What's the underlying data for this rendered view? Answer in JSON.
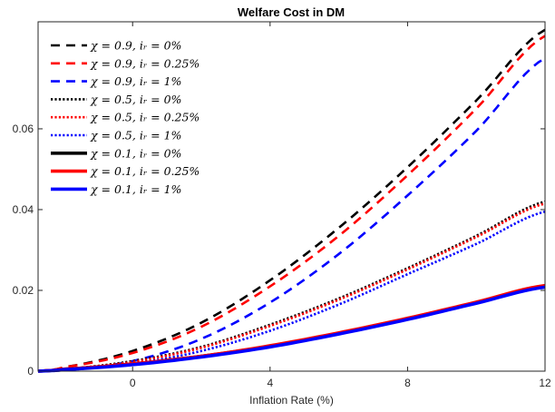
{
  "chart_data": {
    "type": "line",
    "title": "Welfare Cost in DM",
    "xlabel": "Inflation Rate (%)",
    "ylabel": "",
    "xlim": [
      -2.75,
      12
    ],
    "ylim": [
      0,
      0.0865
    ],
    "xticks": [
      0,
      4,
      8,
      12
    ],
    "xtick_labels": [
      "0",
      "4",
      "8",
      "12"
    ],
    "yticks": [
      0,
      0.02,
      0.04,
      0.06
    ],
    "ytick_labels": [
      "0",
      "0.02",
      "0.04",
      "0.06"
    ],
    "grid": false,
    "legend_position": "top-left",
    "series": [
      {
        "name": "χ = 0.9, i_r = 0%",
        "label": "χ = 0.9, iᵣ = 0%",
        "color": "#000000",
        "style": "dashed",
        "x": [
          -2.75,
          -2,
          0,
          2,
          4,
          6,
          8,
          10,
          12
        ],
        "y": [
          0.0,
          0.001,
          0.005,
          0.012,
          0.0225,
          0.0355,
          0.0505,
          0.067,
          0.0845
        ]
      },
      {
        "name": "χ = 0.9, i_r = 0.25%",
        "label": "χ = 0.9, iᵣ = 0.25%",
        "color": "#ff0000",
        "style": "dashed",
        "x": [
          -2.75,
          -2,
          0,
          2,
          4,
          6,
          8,
          10,
          12
        ],
        "y": [
          0.0,
          0.001,
          0.0045,
          0.011,
          0.021,
          0.0335,
          0.0485,
          0.065,
          0.083
        ]
      },
      {
        "name": "χ = 0.9, i_r = 1%",
        "label": "χ = 0.9, iᵣ = 1%",
        "color": "#0000ff",
        "style": "dashed",
        "x": [
          -2.75,
          -2,
          0,
          2,
          4,
          6,
          8,
          10,
          12
        ],
        "y": [
          0.0,
          0.0003,
          0.0025,
          0.008,
          0.017,
          0.029,
          0.0435,
          0.0595,
          0.0775
        ]
      },
      {
        "name": "χ = 0.5, i_r = 0%",
        "label": "χ = 0.5, iᵣ = 0%",
        "color": "#000000",
        "style": "dotted",
        "x": [
          -2.75,
          -2,
          0,
          2,
          4,
          6,
          8,
          10,
          12
        ],
        "y": [
          0.0,
          0.0005,
          0.0025,
          0.006,
          0.0115,
          0.018,
          0.0255,
          0.0335,
          0.042
        ]
      },
      {
        "name": "χ = 0.5, i_r = 0.25%",
        "label": "χ = 0.5, iᵣ = 0.25%",
        "color": "#ff0000",
        "style": "dotted",
        "x": [
          -2.75,
          -2,
          0,
          2,
          4,
          6,
          8,
          10,
          12
        ],
        "y": [
          0.0,
          0.0005,
          0.0023,
          0.0058,
          0.0112,
          0.0177,
          0.0252,
          0.0332,
          0.0415
        ]
      },
      {
        "name": "χ = 0.5, i_r = 1%",
        "label": "χ = 0.5, iᵣ = 1%",
        "color": "#0000ff",
        "style": "dotted",
        "x": [
          -2.75,
          -2,
          0,
          2,
          4,
          6,
          8,
          10,
          12
        ],
        "y": [
          0.0,
          0.0003,
          0.0018,
          0.005,
          0.01,
          0.0165,
          0.024,
          0.0315,
          0.0395
        ]
      },
      {
        "name": "χ = 0.1, i_r = 0%",
        "label": "χ = 0.1, iᵣ = 0%",
        "color": "#000000",
        "style": "solid",
        "x": [
          -2.75,
          -2,
          0,
          2,
          4,
          6,
          8,
          10,
          12
        ],
        "y": [
          0.0,
          0.0005,
          0.0018,
          0.0037,
          0.0062,
          0.0094,
          0.013,
          0.017,
          0.021
        ]
      },
      {
        "name": "χ = 0.1, i_r = 0.25%",
        "label": "χ = 0.1, iᵣ = 0.25%",
        "color": "#ff0000",
        "style": "solid",
        "x": [
          -2.75,
          -2,
          0,
          2,
          4,
          6,
          8,
          10,
          12
        ],
        "y": [
          0.0,
          0.0005,
          0.0018,
          0.0037,
          0.0063,
          0.0095,
          0.0131,
          0.0171,
          0.0212
        ]
      },
      {
        "name": "χ = 0.1, i_r = 1%",
        "label": "χ = 0.1, iᵣ = 1%",
        "color": "#0000ff",
        "style": "solid",
        "x": [
          -2.75,
          -2,
          0,
          2,
          4,
          6,
          8,
          10,
          12
        ],
        "y": [
          0.0,
          0.0004,
          0.0016,
          0.0035,
          0.006,
          0.0092,
          0.0128,
          0.0168,
          0.0208
        ]
      }
    ]
  }
}
